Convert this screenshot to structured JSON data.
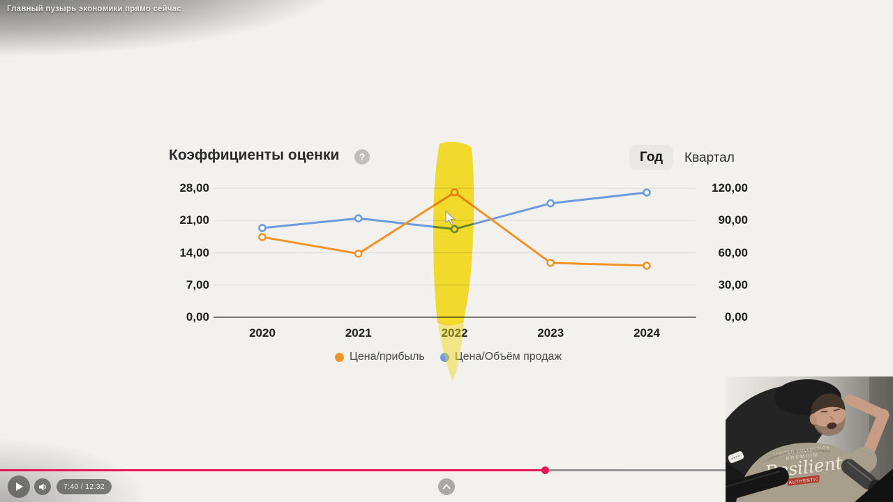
{
  "video": {
    "title": "Главный пузырь экономики прямо сейчас",
    "player": {
      "time_display": "7:40 / 12:32",
      "progress_percent": 61,
      "accent_color": "#e60a4e"
    }
  },
  "chart": {
    "title": "Коэффициенты оценки",
    "help_label": "?",
    "period_toggle": {
      "options": [
        "Год",
        "Квартал"
      ],
      "selected": "Год"
    }
  },
  "chart_data": {
    "type": "line",
    "title": "Коэффициенты оценки",
    "categories": [
      "2020",
      "2021",
      "2022",
      "2023",
      "2024"
    ],
    "series": [
      {
        "name": "Цена/прибыль",
        "axis": "left",
        "color": "#f39226",
        "values": [
          17.4,
          13.8,
          27.1,
          11.8,
          11.2
        ]
      },
      {
        "name": "Цена/Объём продаж",
        "axis": "right",
        "color": "#6b9bdc",
        "values": [
          83,
          92,
          82,
          106,
          116
        ]
      }
    ],
    "left_axis": {
      "min": 0,
      "max": 28,
      "ticks": [
        "28,00",
        "21,00",
        "14,00",
        "7,00",
        "0,00"
      ]
    },
    "right_axis": {
      "min": 0,
      "max": 120,
      "ticks": [
        "120,00",
        "90,00",
        "60,00",
        "30,00",
        "0,00"
      ]
    },
    "grid": true,
    "legend_position": "bottom",
    "annotation": {
      "type": "highlighter-stroke",
      "category": "2022",
      "color": "#f2d60a"
    }
  },
  "webcam": {
    "shirt_text_top": "LIMITED COLLECTION",
    "shirt_text_premium": "PREMIUM",
    "shirt_text_main": "Resilient",
    "shirt_text_estd": "ESTD",
    "shirt_text_authentic": "AUTHENTIC"
  }
}
